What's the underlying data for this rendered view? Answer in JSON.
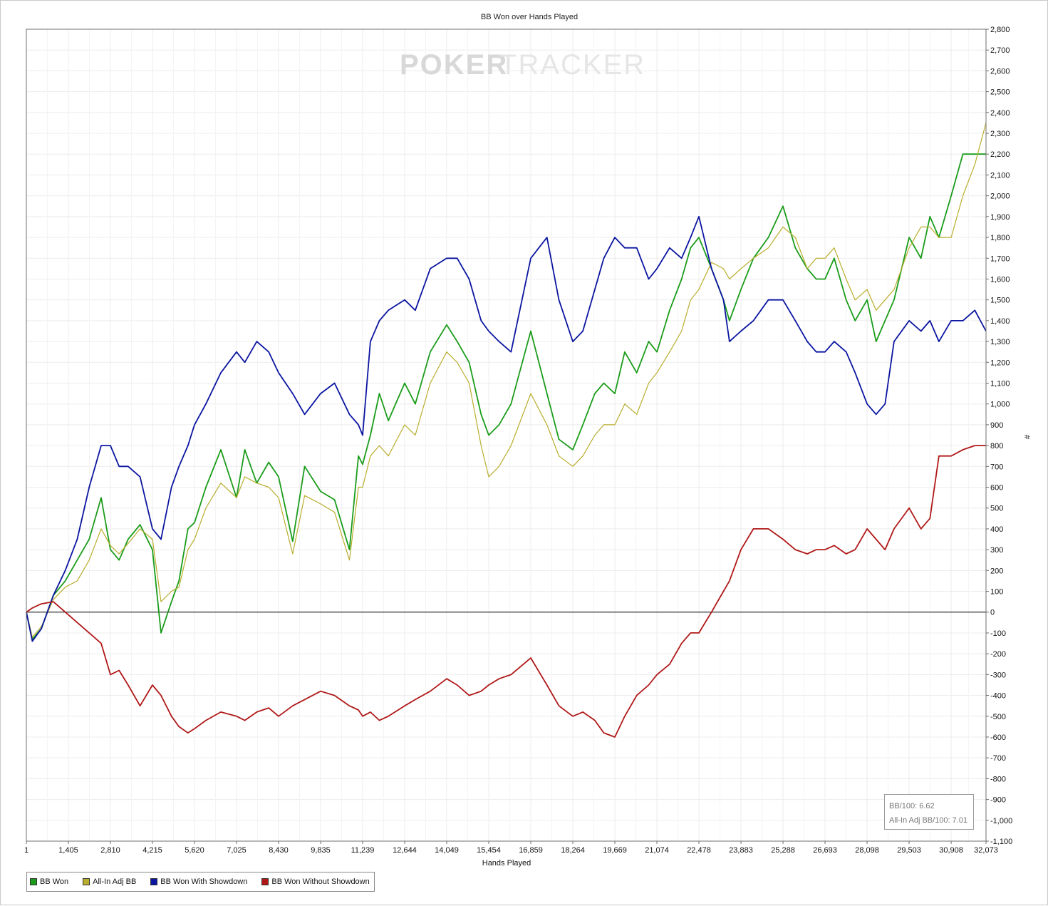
{
  "chart_data": {
    "type": "line",
    "title": "BB Won over Hands Played",
    "xlabel": "Hands Played",
    "ylabel": "#",
    "xlim": [
      1,
      32073
    ],
    "ylim": [
      -1100,
      2800
    ],
    "grid": true,
    "legend_position": "bottom-left",
    "watermark": {
      "part_a": "POKER",
      "part_b": "TRACKER"
    },
    "x_ticks": [
      "1",
      "1,405",
      "2,810",
      "4,215",
      "5,620",
      "7,025",
      "8,430",
      "9,835",
      "11,239",
      "12,644",
      "14,049",
      "15,454",
      "16,859",
      "18,264",
      "19,669",
      "21,074",
      "22,478",
      "23,883",
      "25,288",
      "26,693",
      "28,098",
      "29,503",
      "30,908",
      "32,073"
    ],
    "y_ticks": [
      "2,800",
      "2,700",
      "2,600",
      "2,500",
      "2,400",
      "2,300",
      "2,200",
      "2,100",
      "2,000",
      "1,900",
      "1,800",
      "1,700",
      "1,600",
      "1,500",
      "1,400",
      "1,300",
      "1,200",
      "1,100",
      "1,000",
      "900",
      "800",
      "700",
      "600",
      "500",
      "400",
      "300",
      "200",
      "100",
      "0",
      "-100",
      "-200",
      "-300",
      "-400",
      "-500",
      "-600",
      "-700",
      "-800",
      "-900",
      "-1,000",
      "-1,100"
    ],
    "x_tick_values": [
      1,
      1405,
      2810,
      4215,
      5620,
      7025,
      8430,
      9835,
      11239,
      12644,
      14049,
      15454,
      16859,
      18264,
      19669,
      21074,
      22478,
      23883,
      25288,
      26693,
      28098,
      29503,
      30908,
      32073
    ],
    "y_tick_values": [
      2800,
      2700,
      2600,
      2500,
      2400,
      2300,
      2200,
      2100,
      2000,
      1900,
      1800,
      1700,
      1600,
      1500,
      1400,
      1300,
      1200,
      1100,
      1000,
      900,
      800,
      700,
      600,
      500,
      400,
      300,
      200,
      100,
      0,
      -100,
      -200,
      -300,
      -400,
      -500,
      -600,
      -700,
      -800,
      -900,
      -1000,
      -1100
    ],
    "stats": {
      "bb100": "BB/100: 6.62",
      "allin_bb100": "All-In Adj BB/100: 7.01"
    },
    "series": [
      {
        "name": "BB Won",
        "color": "#1a9c1a",
        "x": [
          1,
          200,
          500,
          900,
          1300,
          1700,
          2100,
          2500,
          2810,
          3100,
          3400,
          3800,
          4215,
          4500,
          4850,
          5100,
          5400,
          5620,
          6000,
          6500,
          7025,
          7300,
          7700,
          8100,
          8430,
          8900,
          9300,
          9835,
          10300,
          10800,
          11100,
          11239,
          11500,
          11800,
          12100,
          12644,
          13000,
          13500,
          14049,
          14400,
          14800,
          15200,
          15454,
          15800,
          16200,
          16859,
          17400,
          17800,
          18264,
          18600,
          19000,
          19300,
          19669,
          20000,
          20400,
          20800,
          21074,
          21500,
          21900,
          22200,
          22478,
          22900,
          23300,
          23500,
          23883,
          24300,
          24800,
          25288,
          25700,
          26100,
          26400,
          26693,
          27000,
          27400,
          27700,
          28098,
          28400,
          28700,
          29000,
          29503,
          29900,
          30200,
          30500,
          30908,
          31300,
          31700,
          32073
        ],
        "y": [
          0,
          -130,
          -80,
          80,
          150,
          250,
          350,
          550,
          300,
          250,
          350,
          420,
          300,
          -100,
          50,
          150,
          400,
          430,
          600,
          780,
          550,
          780,
          620,
          720,
          650,
          340,
          700,
          580,
          540,
          300,
          750,
          710,
          850,
          1050,
          920,
          1100,
          1000,
          1250,
          1380,
          1300,
          1200,
          950,
          850,
          900,
          1000,
          1350,
          1050,
          830,
          780,
          900,
          1050,
          1100,
          1050,
          1250,
          1150,
          1300,
          1250,
          1450,
          1600,
          1750,
          1800,
          1650,
          1500,
          1400,
          1550,
          1700,
          1800,
          1950,
          1750,
          1650,
          1600,
          1600,
          1700,
          1500,
          1400,
          1500,
          1300,
          1400,
          1500,
          1800,
          1700,
          1900,
          1800,
          2000,
          2200,
          2200,
          2200
        ]
      },
      {
        "name": "All-In Adj BB",
        "color": "#b8ad2c",
        "x": [
          1,
          200,
          500,
          900,
          1300,
          1700,
          2100,
          2500,
          2810,
          3100,
          3400,
          3800,
          4215,
          4500,
          4850,
          5100,
          5400,
          5620,
          6000,
          6500,
          7025,
          7300,
          7700,
          8100,
          8430,
          8900,
          9300,
          9835,
          10300,
          10800,
          11100,
          11239,
          11500,
          11800,
          12100,
          12644,
          13000,
          13500,
          14049,
          14400,
          14800,
          15200,
          15454,
          15800,
          16200,
          16859,
          17400,
          17800,
          18264,
          18600,
          19000,
          19300,
          19669,
          20000,
          20400,
          20800,
          21074,
          21500,
          21900,
          22200,
          22478,
          22900,
          23300,
          23500,
          23883,
          24300,
          24800,
          25288,
          25700,
          26100,
          26400,
          26693,
          27000,
          27400,
          27700,
          28098,
          28400,
          28700,
          29000,
          29503,
          29900,
          30200,
          30500,
          30908,
          31300,
          31700,
          32073
        ],
        "y": [
          0,
          -120,
          -70,
          60,
          120,
          150,
          250,
          400,
          320,
          280,
          330,
          400,
          350,
          50,
          100,
          120,
          300,
          350,
          500,
          620,
          550,
          650,
          620,
          600,
          550,
          280,
          560,
          520,
          480,
          250,
          600,
          600,
          750,
          800,
          750,
          900,
          850,
          1100,
          1250,
          1200,
          1100,
          800,
          650,
          700,
          800,
          1050,
          900,
          750,
          700,
          750,
          850,
          900,
          900,
          1000,
          950,
          1100,
          1150,
          1250,
          1350,
          1500,
          1550,
          1680,
          1650,
          1600,
          1650,
          1700,
          1750,
          1850,
          1800,
          1650,
          1700,
          1700,
          1750,
          1600,
          1500,
          1550,
          1450,
          1500,
          1550,
          1750,
          1850,
          1850,
          1800,
          1800,
          2000,
          2150,
          2350
        ]
      },
      {
        "name": "BB Won With Showdown",
        "color": "#0a15a0",
        "x": [
          1,
          200,
          500,
          900,
          1300,
          1700,
          2100,
          2500,
          2810,
          3100,
          3400,
          3800,
          4215,
          4500,
          4850,
          5100,
          5400,
          5620,
          6000,
          6500,
          7025,
          7300,
          7700,
          8100,
          8430,
          8900,
          9300,
          9835,
          10300,
          10800,
          11100,
          11239,
          11500,
          11800,
          12100,
          12644,
          13000,
          13500,
          14049,
          14400,
          14800,
          15200,
          15454,
          15800,
          16200,
          16859,
          17400,
          17800,
          18264,
          18600,
          19000,
          19300,
          19669,
          20000,
          20400,
          20800,
          21074,
          21500,
          21900,
          22200,
          22478,
          22900,
          23300,
          23500,
          23883,
          24300,
          24800,
          25288,
          25700,
          26100,
          26400,
          26693,
          27000,
          27400,
          27700,
          28098,
          28400,
          28700,
          29000,
          29503,
          29900,
          30200,
          30500,
          30908,
          31300,
          31700,
          32073
        ],
        "y": [
          0,
          -140,
          -80,
          80,
          200,
          350,
          600,
          800,
          800,
          700,
          700,
          650,
          400,
          350,
          600,
          700,
          800,
          900,
          1000,
          1150,
          1250,
          1200,
          1300,
          1250,
          1150,
          1050,
          950,
          1050,
          1100,
          950,
          900,
          850,
          1300,
          1400,
          1450,
          1500,
          1450,
          1650,
          1700,
          1700,
          1600,
          1400,
          1350,
          1300,
          1250,
          1700,
          1800,
          1500,
          1300,
          1350,
          1550,
          1700,
          1800,
          1750,
          1750,
          1600,
          1650,
          1750,
          1700,
          1800,
          1900,
          1650,
          1500,
          1300,
          1350,
          1400,
          1500,
          1500,
          1400,
          1300,
          1250,
          1250,
          1300,
          1250,
          1150,
          1000,
          950,
          1000,
          1300,
          1400,
          1350,
          1400,
          1300,
          1400,
          1400,
          1450,
          1350
        ]
      },
      {
        "name": "BB Won Without Showdown",
        "color": "#b01818",
        "x": [
          1,
          200,
          500,
          900,
          1300,
          1700,
          2100,
          2500,
          2810,
          3100,
          3400,
          3800,
          4215,
          4500,
          4850,
          5100,
          5400,
          5620,
          6000,
          6500,
          7025,
          7300,
          7700,
          8100,
          8430,
          8900,
          9300,
          9835,
          10300,
          10800,
          11100,
          11239,
          11500,
          11800,
          12100,
          12644,
          13000,
          13500,
          14049,
          14400,
          14800,
          15200,
          15454,
          15800,
          16200,
          16859,
          17400,
          17800,
          18264,
          18600,
          19000,
          19300,
          19669,
          20000,
          20400,
          20800,
          21074,
          21500,
          21900,
          22200,
          22478,
          22900,
          23300,
          23500,
          23883,
          24300,
          24800,
          25288,
          25700,
          26100,
          26400,
          26693,
          27000,
          27400,
          27700,
          28098,
          28400,
          28700,
          29000,
          29503,
          29900,
          30200,
          30500,
          30908,
          31300,
          31700,
          32073
        ],
        "y": [
          0,
          20,
          40,
          50,
          0,
          -50,
          -100,
          -150,
          -300,
          -280,
          -350,
          -450,
          -350,
          -400,
          -500,
          -550,
          -580,
          -560,
          -520,
          -480,
          -500,
          -520,
          -480,
          -460,
          -500,
          -450,
          -420,
          -380,
          -400,
          -450,
          -470,
          -500,
          -480,
          -520,
          -500,
          -450,
          -420,
          -380,
          -320,
          -350,
          -400,
          -380,
          -350,
          -320,
          -300,
          -220,
          -350,
          -450,
          -500,
          -480,
          -520,
          -580,
          -600,
          -500,
          -400,
          -350,
          -300,
          -250,
          -150,
          -100,
          -100,
          0,
          100,
          150,
          300,
          400,
          400,
          350,
          300,
          280,
          300,
          300,
          320,
          280,
          300,
          400,
          350,
          300,
          400,
          500,
          400,
          450,
          750,
          750,
          780,
          800,
          800
        ]
      }
    ]
  }
}
